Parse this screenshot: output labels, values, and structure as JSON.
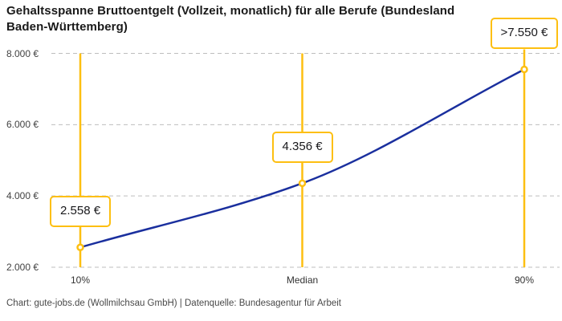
{
  "title": {
    "line1": "Gehaltsspanne Bruttoentgelt (Vollzeit, monatlich) für alle Berufe (Bundesland",
    "line2": "Baden-Württemberg)"
  },
  "footer": {
    "attribution": "Chart: gute-jobs.de (Wollmilchsau GmbH) | Datenquelle: Bundesagentur für Arbeit"
  },
  "colors": {
    "accent_yellow": "#fdbf11",
    "line_blue": "#1a2f9e",
    "grid": "#bdbdbd",
    "title_text": "#1a1a1a",
    "axis_text": "#424242",
    "value_text": "#18181b"
  },
  "chart_data": {
    "type": "line",
    "title": "Gehaltsspanne Bruttoentgelt (Vollzeit, monatlich) für alle Berufe (Bundesland Baden-Württemberg)",
    "categories": [
      "10%",
      "Median",
      "90%"
    ],
    "values": [
      2558,
      4356,
      7550
    ],
    "point_labels": [
      "2.558 €",
      "4.356 €",
      ">7.550 €"
    ],
    "xlabel": "",
    "ylabel": "",
    "ylim": [
      2000,
      8000
    ],
    "yticks": [
      {
        "value": 8000,
        "label": "8.000 €"
      },
      {
        "value": 6000,
        "label": "6.000 €"
      },
      {
        "value": 4000,
        "label": "4.000 €"
      },
      {
        "value": 2000,
        "label": "2.000 €"
      }
    ],
    "grid": "horizontal-dashed",
    "legend": "none",
    "attribution": "Chart: gute-jobs.de (Wollmilchsau GmbH) | Datenquelle: Bundesagentur für Arbeit"
  }
}
